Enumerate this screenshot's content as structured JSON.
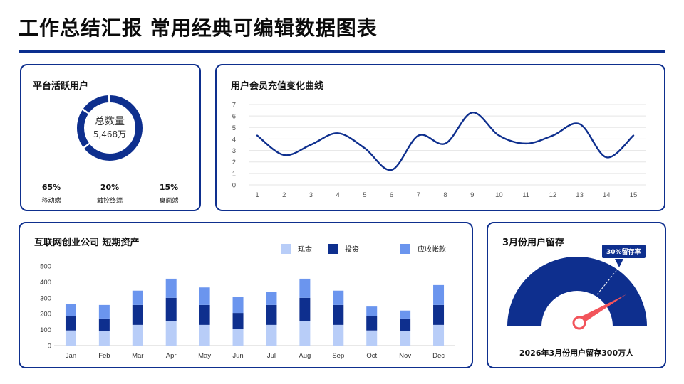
{
  "page": {
    "title": "工作总结汇报 常用经典可编辑数据图表"
  },
  "colors": {
    "primary": "#0e2f8e",
    "mid": "#6b95ee",
    "light": "#b8cdf8",
    "accent": "#f2545b"
  },
  "users_card": {
    "title": "平台活跃用户",
    "center_label": "总数量",
    "center_value": "5,468万",
    "segments": [
      {
        "pct": "65%",
        "label": "移动端",
        "value": 65
      },
      {
        "pct": "20%",
        "label": "触控终端",
        "value": 20
      },
      {
        "pct": "15%",
        "label": "桌面端",
        "value": 15
      }
    ]
  },
  "line_card": {
    "title": "用户会员充值变化曲线",
    "chart_data": {
      "type": "line",
      "x": [
        1,
        2,
        3,
        4,
        5,
        6,
        7,
        8,
        9,
        10,
        11,
        12,
        13,
        14,
        15
      ],
      "series": [
        {
          "values": [
            4.3,
            2.6,
            3.5,
            4.5,
            3.2,
            1.3,
            4.3,
            3.6,
            6.3,
            4.3,
            3.6,
            4.3,
            5.3,
            2.4,
            4.3
          ]
        }
      ],
      "ylim": [
        0,
        7
      ],
      "yticks": [
        0,
        1,
        2,
        3,
        4,
        5,
        6,
        7
      ],
      "grid": true
    }
  },
  "bar_card": {
    "title": "互联网创业公司  短期资产",
    "chart_data": {
      "type": "bar",
      "stacked": true,
      "categories": [
        "Jan",
        "Feb",
        "Mar",
        "Apr",
        "May",
        "Jun",
        "Jul",
        "Aug",
        "Sep",
        "Oct",
        "Nov",
        "Dec"
      ],
      "series": [
        {
          "name": "现金",
          "values": [
            95,
            90,
            130,
            155,
            130,
            105,
            130,
            155,
            130,
            95,
            90,
            130
          ]
        },
        {
          "name": "投资",
          "values": [
            90,
            80,
            125,
            145,
            125,
            100,
            125,
            145,
            125,
            90,
            80,
            125
          ]
        },
        {
          "name": "应收帐款",
          "values": [
            75,
            85,
            90,
            120,
            110,
            100,
            80,
            120,
            90,
            60,
            50,
            125
          ]
        }
      ],
      "ylim": [
        0,
        500
      ],
      "yticks": [
        0,
        100,
        200,
        300,
        400,
        500
      ],
      "grid": false,
      "legend": "top-right"
    }
  },
  "gauge_card": {
    "title": "3月份用户留存",
    "tag": "30%留存率",
    "value_fraction": 0.3,
    "caption": "2026年3月份用户留存300万人"
  }
}
